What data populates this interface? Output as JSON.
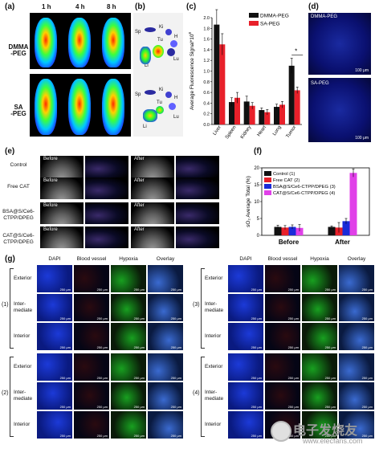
{
  "panel_a": {
    "label": "(a)",
    "times": [
      "1 h",
      "4 h",
      "8 h"
    ],
    "rows": [
      {
        "line1": "DMMA",
        "line2": "-PEG"
      },
      {
        "line1": "SA",
        "line2": "-PEG"
      }
    ]
  },
  "panel_b": {
    "label": "(b)",
    "organs": [
      "Sp",
      "Ki",
      "H",
      "Tu",
      "Lu",
      "Li"
    ]
  },
  "panel_c": {
    "label": "(c)",
    "significance": "*"
  },
  "panel_d": {
    "label": "(d)",
    "top_label": "DMMA-PEG",
    "bottom_label": "SA-PEG",
    "scale": "100 μm"
  },
  "panel_e": {
    "label": "(e)",
    "rows": [
      {
        "name": "Control",
        "lines": [
          "Control"
        ]
      },
      {
        "name": "Free CAT",
        "lines": [
          "Free CAT"
        ]
      },
      {
        "name": "BSA",
        "lines": [
          "BSA@S/Ce6-",
          "CTPP/DPEG"
        ]
      },
      {
        "name": "CAT",
        "lines": [
          "CAT@S/Ce6-",
          "CTPP/DPEG"
        ]
      }
    ],
    "before": "Before",
    "after": "After"
  },
  "panel_f": {
    "label": "(f)"
  },
  "panel_g": {
    "label": "(g)",
    "columns": [
      "DAPI",
      "Blood vessel",
      "Hypoxia",
      "Overlay"
    ],
    "zones": [
      "Exterior",
      "Inter-",
      "mediate",
      "Interior"
    ],
    "groups": [
      "(1)",
      "(2)",
      "(3)",
      "(4)"
    ],
    "scale": "250 μm"
  },
  "watermark": {
    "cn": "电子发烧友",
    "en": "www.elecfans.com"
  },
  "chart_data": [
    {
      "type": "bar",
      "title": "",
      "xlabel": "",
      "ylabel": "Average Fluorescence Signal*10",
      "ylabel_exp": "8",
      "ylim": [
        0,
        2.0
      ],
      "yticks": [
        "0.0",
        "0.2",
        "0.4",
        "0.6",
        "0.8",
        "1.0",
        "1.2",
        "1.4",
        "1.6",
        "1.8",
        "2.0"
      ],
      "categories": [
        "Liver",
        "Spleen",
        "Kidney",
        "Heart",
        "Lung",
        "Tumor"
      ],
      "series": [
        {
          "name": "DMMA-PEG",
          "color": "#111111",
          "values": [
            1.87,
            0.42,
            0.43,
            0.27,
            0.33,
            1.1
          ],
          "errors": [
            0.28,
            0.08,
            0.1,
            0.04,
            0.05,
            0.14
          ]
        },
        {
          "name": "SA-PEG",
          "color": "#e8202a",
          "values": [
            1.5,
            0.5,
            0.35,
            0.23,
            0.37,
            0.64
          ],
          "errors": [
            0.2,
            0.1,
            0.06,
            0.05,
            0.06,
            0.06
          ]
        }
      ],
      "legend_position": "top-right"
    },
    {
      "type": "bar",
      "title": "",
      "xlabel": "",
      "ylabel": "sO₂ Average Total (%)",
      "ylim": [
        0,
        20
      ],
      "yticks": [
        "0",
        "5",
        "10",
        "15",
        "20"
      ],
      "categories": [
        "Before",
        "After"
      ],
      "series": [
        {
          "name": "Control (1)",
          "color": "#111111",
          "values": [
            2.5,
            2.5
          ],
          "errors": [
            0.5,
            0.3
          ]
        },
        {
          "name": "Free CAT (2)",
          "color": "#e8202a",
          "values": [
            2.3,
            2.3
          ],
          "errors": [
            0.6,
            1.5
          ]
        },
        {
          "name": "BSA@S/Ce6-CTPP/DPEG (3)",
          "color": "#1a2bd8",
          "values": [
            2.5,
            4.2
          ],
          "errors": [
            0.6,
            0.8
          ]
        },
        {
          "name": "CAT@S/Ce6-CTPP/DPEG (4)",
          "color": "#e040e8",
          "values": [
            2.2,
            18.5
          ],
          "errors": [
            1.0,
            1.2
          ]
        }
      ],
      "legend_position": "top-left"
    }
  ]
}
